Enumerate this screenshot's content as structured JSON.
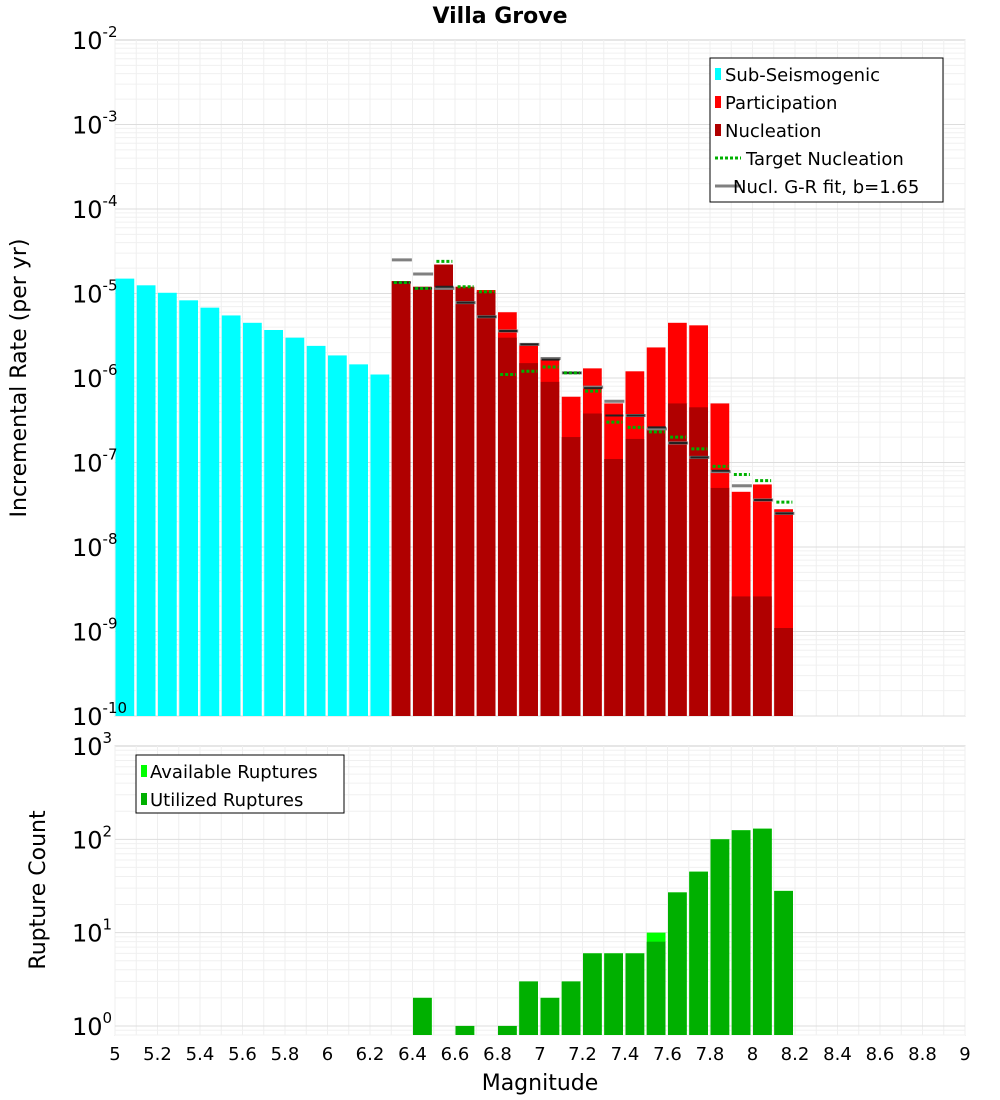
{
  "title": "Villa Grove",
  "colors": {
    "sub_seismogenic": "#00ffff",
    "participation": "#ff0000",
    "nucleation": "#b00000",
    "target_nucleation": "#00b000",
    "gr_fit": "#808080",
    "model_tick": "#222222",
    "available": "#00ff00",
    "utilized": "#00b000"
  },
  "chart_data": [
    {
      "type": "bar",
      "title": "Villa Grove",
      "xlabel": "Magnitude",
      "ylabel": "Incremental Rate (per yr)",
      "yscale": "log",
      "xlim": [
        5,
        9
      ],
      "ylim": [
        1e-10,
        0.01
      ],
      "ytick_labels": [
        "10^-10",
        "10^-9",
        "10^-8",
        "10^-7",
        "10^-6",
        "10^-5",
        "10^-4",
        "10^-3",
        "10^-2"
      ],
      "bin_width": 0.1,
      "legend": [
        "Sub-Seismogenic",
        "Participation",
        "Nucleation",
        "Target Nucleation",
        "Nucl. G-R fit, b=1.65"
      ],
      "legend_position": "top-right",
      "series": [
        {
          "name": "Sub-Seismogenic",
          "x": [
            5.0,
            5.1,
            5.2,
            5.3,
            5.4,
            5.5,
            5.6,
            5.7,
            5.8,
            5.9,
            6.0,
            6.1,
            6.2
          ],
          "values": [
            1.5e-05,
            1.25e-05,
            1.02e-05,
            8.3e-06,
            6.8e-06,
            5.5e-06,
            4.5e-06,
            3.7e-06,
            3e-06,
            2.4e-06,
            1.85e-06,
            1.45e-06,
            1.1e-06
          ]
        },
        {
          "name": "Participation",
          "x": [
            6.35,
            6.45,
            6.55,
            6.65,
            6.75,
            6.85,
            6.95,
            7.05,
            7.15,
            7.25,
            7.35,
            7.45,
            7.55,
            7.65,
            7.75,
            7.85,
            7.95,
            8.05,
            8.15
          ],
          "values": [
            1.4e-05,
            1.2e-05,
            2.2e-05,
            1.2e-05,
            1.1e-05,
            6e-06,
            2.5e-06,
            1.7e-06,
            6e-07,
            1.3e-06,
            5e-07,
            1.2e-06,
            2.3e-06,
            4.5e-06,
            4.2e-06,
            5e-07,
            4.5e-08,
            5.5e-08,
            2.8e-08
          ]
        },
        {
          "name": "Nucleation",
          "x": [
            6.35,
            6.45,
            6.55,
            6.65,
            6.75,
            6.85,
            6.95,
            7.05,
            7.15,
            7.25,
            7.35,
            7.45,
            7.55,
            7.65,
            7.75,
            7.85,
            7.95,
            8.05,
            8.15
          ],
          "values": [
            1.4e-05,
            1.2e-05,
            2.2e-05,
            1.2e-05,
            1.05e-05,
            3e-06,
            1.5e-06,
            9e-07,
            2e-07,
            3.8e-07,
            1.1e-07,
            1.9e-07,
            2.5e-07,
            5e-07,
            4.5e-07,
            5e-08,
            2.6e-09,
            2.6e-09,
            1.1e-09
          ]
        },
        {
          "name": "Target Nucleation",
          "x": [
            6.35,
            6.45,
            6.55,
            6.65,
            6.75,
            6.85,
            6.95,
            7.05,
            7.15,
            7.25,
            7.35,
            7.45,
            7.55,
            7.65,
            7.75,
            7.85,
            7.95,
            8.05,
            8.15
          ],
          "values": [
            1.35e-05,
            1.15e-05,
            2.4e-05,
            1.2e-05,
            1.05e-05,
            1.1e-06,
            1.2e-06,
            1.35e-06,
            1.15e-06,
            7e-07,
            3e-07,
            2.6e-07,
            2.3e-07,
            2e-07,
            1.45e-07,
            9e-08,
            7.2e-08,
            6.1e-08,
            3.4e-08
          ]
        },
        {
          "name": "Nucl. G-R fit, b=1.65",
          "x": [
            6.35,
            6.45,
            6.55,
            6.65,
            6.75,
            6.85,
            6.95,
            7.05,
            7.15,
            7.25,
            7.35,
            7.45,
            7.55,
            7.65,
            7.75,
            7.85,
            7.95,
            8.05,
            8.15
          ],
          "values": [
            2.5e-05,
            1.7e-05,
            1.15e-05,
            7.8e-06,
            5.3e-06,
            3.6e-06,
            2.5e-06,
            1.7e-06,
            1.15e-06,
            7.8e-07,
            5.3e-07,
            3.6e-07,
            2.5e-07,
            1.7e-07,
            1.15e-07,
            7.8e-08,
            5.3e-08,
            3.6e-08,
            2.5e-08
          ]
        },
        {
          "name": "Model Nucleation Level",
          "x": [
            6.35,
            6.45,
            6.55,
            6.65,
            6.75,
            6.85,
            6.95,
            7.05,
            7.15,
            7.25,
            7.35,
            7.45,
            7.55,
            7.65,
            7.75,
            7.85,
            7.95,
            8.05,
            8.15
          ],
          "values": [
            1.35e-05,
            1.15e-05,
            1.2e-05,
            7.8e-06,
            5.3e-06,
            3.6e-06,
            2.5e-06,
            1.65e-06,
            1.15e-06,
            7.6e-07,
            3.6e-07,
            3.6e-07,
            2.6e-07,
            1.7e-07,
            1.15e-07,
            8e-08,
            null,
            3.6e-08,
            2.5e-08
          ]
        }
      ]
    },
    {
      "type": "bar",
      "title": "",
      "xlabel": "Magnitude",
      "ylabel": "Rupture Count",
      "yscale": "log",
      "xlim": [
        5,
        9
      ],
      "ylim": [
        0.8,
        1000
      ],
      "ytick_labels": [
        "10^0",
        "10^1",
        "10^2",
        "10^3"
      ],
      "xtick_labels": [
        "5",
        "5.2",
        "5.4",
        "5.6",
        "5.8",
        "6",
        "6.2",
        "6.4",
        "6.6",
        "6.8",
        "7",
        "7.2",
        "7.4",
        "7.6",
        "7.8",
        "8",
        "8.2",
        "8.4",
        "8.6",
        "8.8",
        "9"
      ],
      "legend": [
        "Available Ruptures",
        "Utilized Ruptures"
      ],
      "legend_position": "top-left",
      "series": [
        {
          "name": "Available Ruptures",
          "x": [
            6.45,
            6.65,
            6.85,
            6.95,
            7.05,
            7.15,
            7.25,
            7.35,
            7.45,
            7.55,
            7.65,
            7.75,
            7.85,
            7.95,
            8.05,
            8.15
          ],
          "values": [
            2,
            1,
            1,
            3,
            2,
            3,
            6,
            6,
            6,
            10,
            27,
            45,
            100,
            125,
            130,
            28
          ]
        },
        {
          "name": "Utilized Ruptures",
          "x": [
            6.45,
            6.65,
            6.85,
            6.95,
            7.05,
            7.15,
            7.25,
            7.35,
            7.45,
            7.55,
            7.65,
            7.75,
            7.85,
            7.95,
            8.05,
            8.15
          ],
          "values": [
            2,
            1,
            1,
            3,
            2,
            3,
            6,
            6,
            6,
            8,
            27,
            45,
            100,
            125,
            130,
            28
          ]
        }
      ]
    }
  ]
}
